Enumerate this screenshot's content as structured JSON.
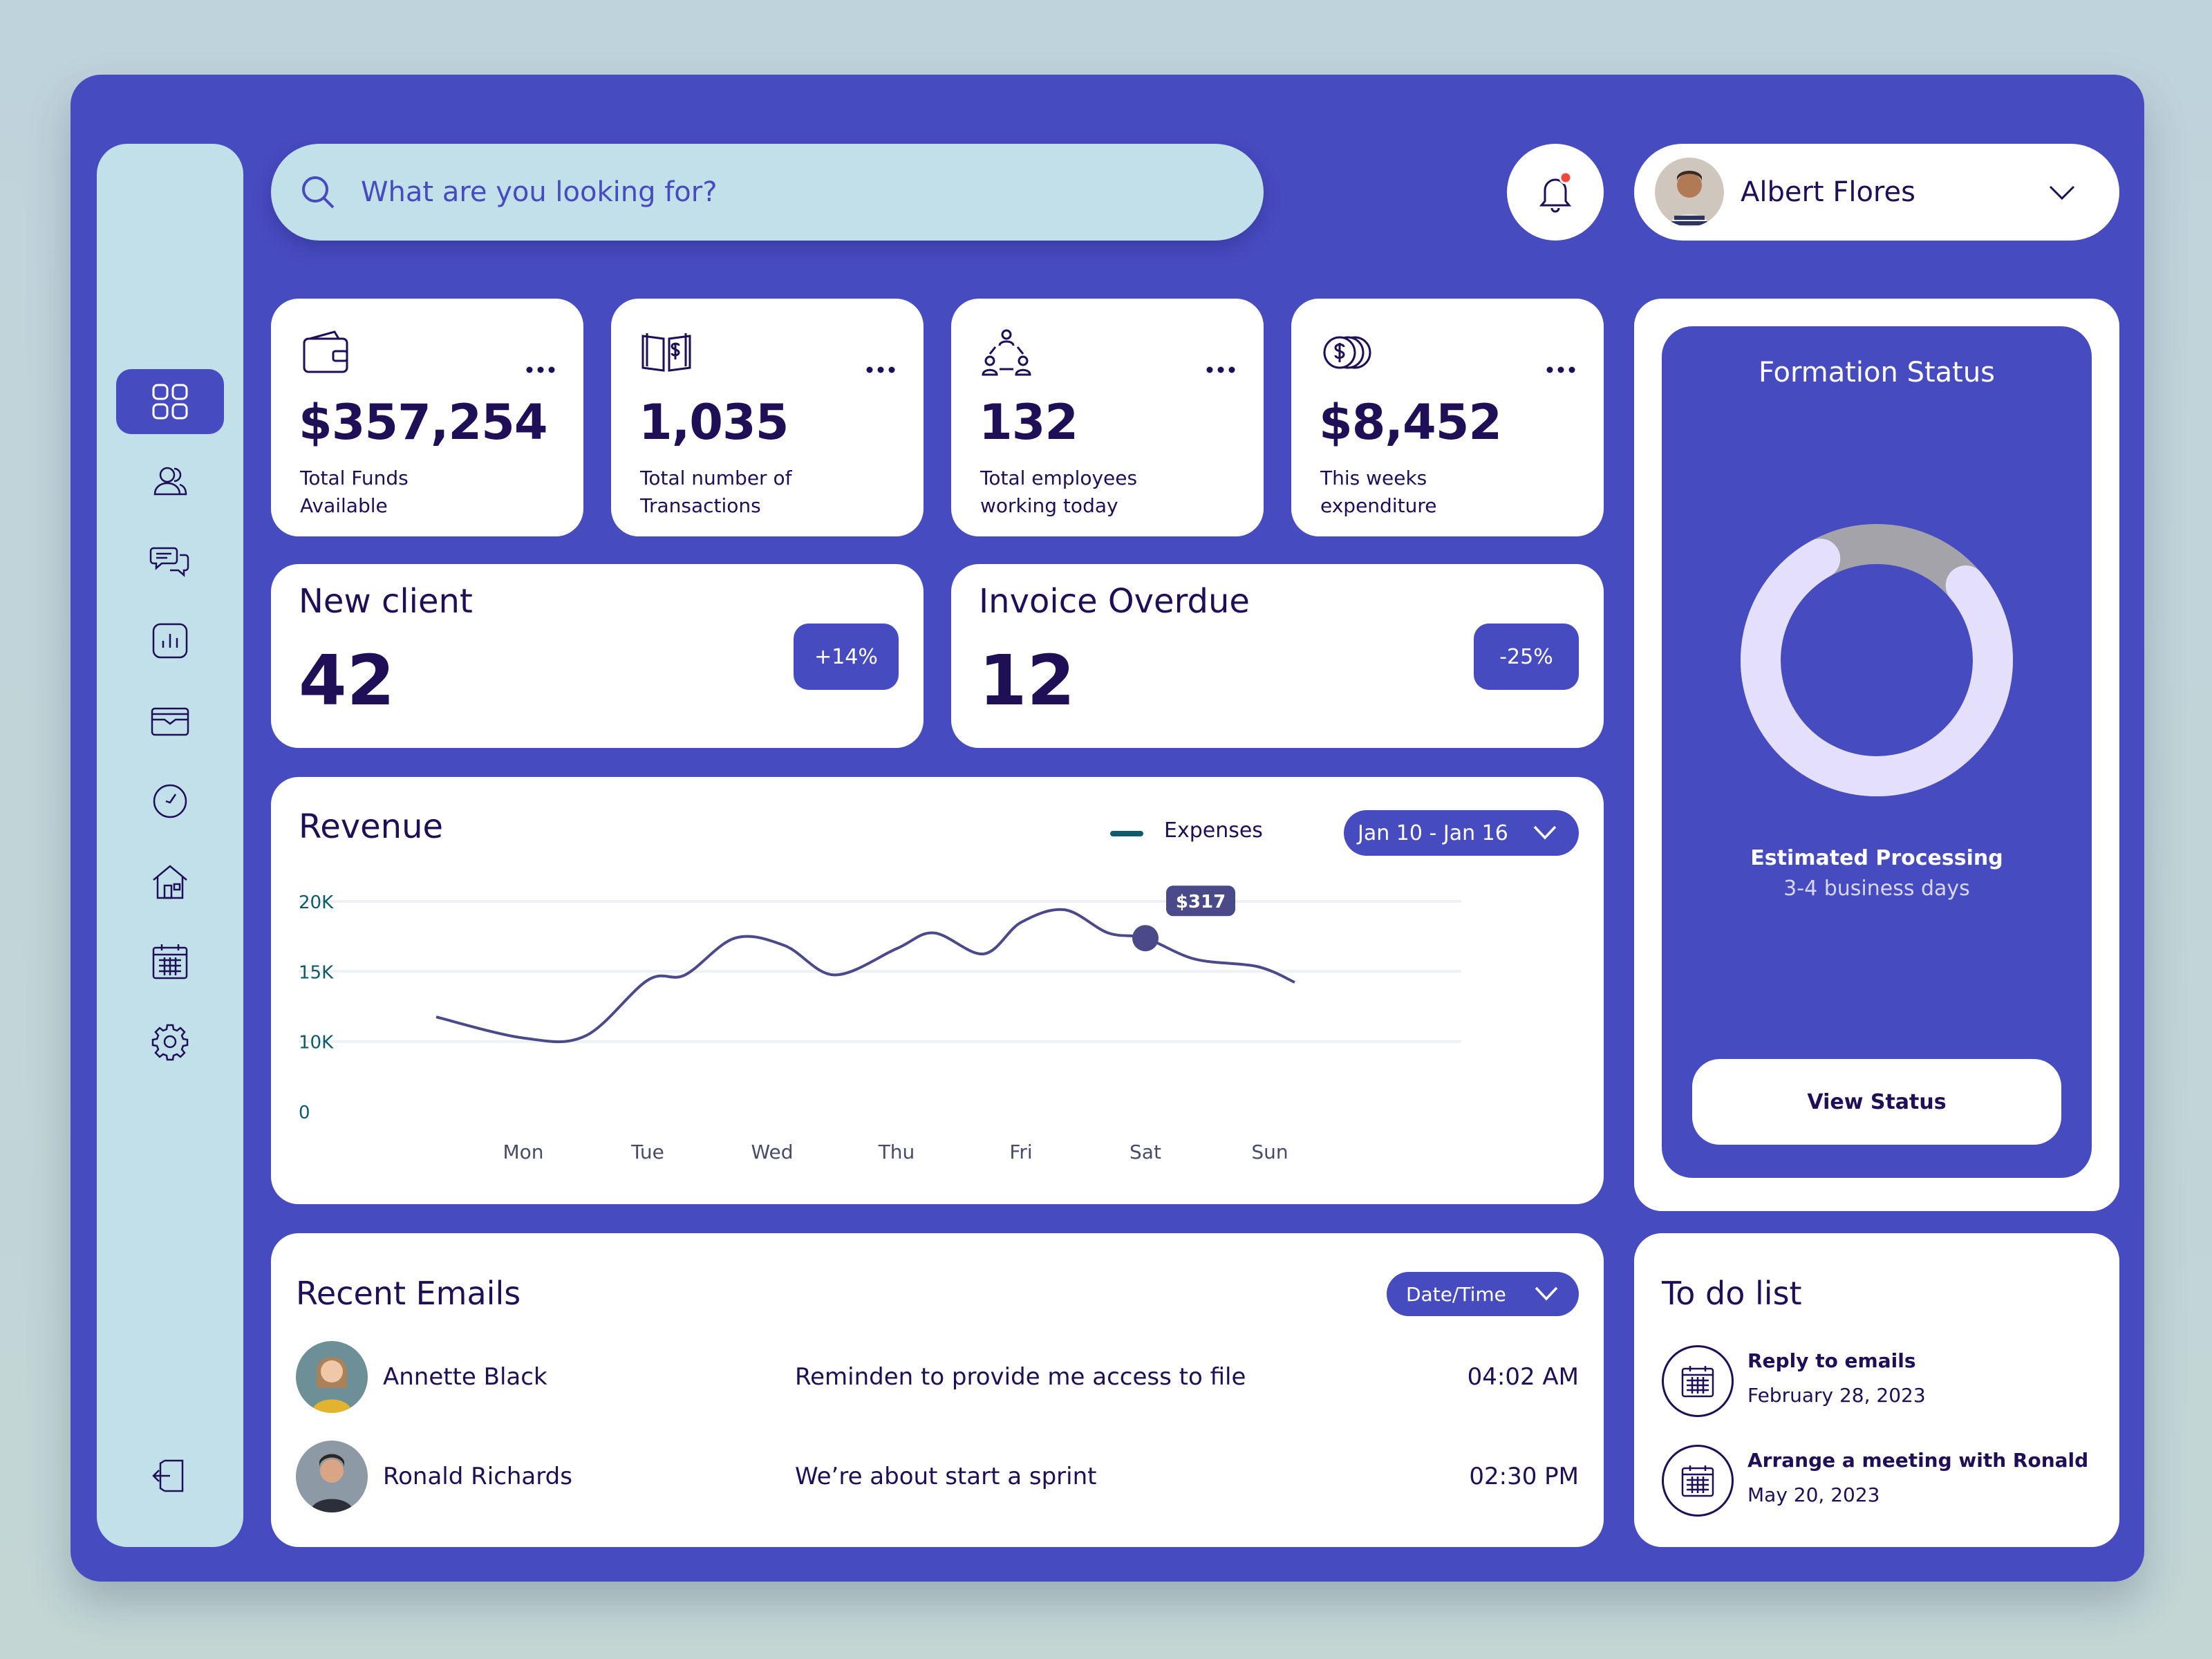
{
  "search": {
    "placeholder": "What are you looking for?"
  },
  "profile": {
    "name": "Albert Flores"
  },
  "stats": [
    {
      "icon": "wallet-icon",
      "value": "$357,254",
      "label": "Total Funds Available"
    },
    {
      "icon": "money-book-icon",
      "value": "1,035",
      "label": "Total number of Transactions"
    },
    {
      "icon": "team-icon",
      "value": "132",
      "label": "Total employees working today"
    },
    {
      "icon": "coins-icon",
      "value": "$8,452",
      "label": "This weeks expenditure"
    }
  ],
  "metrics": [
    {
      "title": "New client",
      "value": "42",
      "badge": "+14%"
    },
    {
      "title": "Invoice Overdue",
      "value": "12",
      "badge": "-25%"
    }
  ],
  "revenue": {
    "title": "Revenue",
    "legend": "Expenses",
    "range": "Jan 10 - Jan 16",
    "tooltip": "$317"
  },
  "chart_data": {
    "type": "line",
    "title": "Revenue",
    "yticks": [
      "20K",
      "15K",
      "10K",
      "0"
    ],
    "ylim": [
      0,
      20000
    ],
    "categories": [
      "Mon",
      "Tue",
      "Wed",
      "Thu",
      "Fri",
      "Sat",
      "Sun"
    ],
    "series": [
      {
        "name": "Expenses",
        "x": [
          -0.7,
          0.0,
          0.5,
          1.0,
          1.3,
          1.7,
          2.1,
          2.5,
          3.0,
          3.3,
          3.7,
          4.0,
          4.35,
          4.7,
          5.0,
          5.4,
          5.9,
          6.2
        ],
        "y": [
          9000,
          7000,
          7200,
          12500,
          13000,
          16500,
          15800,
          13000,
          15500,
          17000,
          15000,
          18000,
          19200,
          17000,
          16500,
          14500,
          13800,
          12300
        ]
      }
    ],
    "highlight": {
      "x": 5.0,
      "y": 16500,
      "label": "$317"
    },
    "grid": true
  },
  "formation": {
    "title": "Formation Status",
    "sub1": "Estimated Processing",
    "sub2": "3-4 business days",
    "button": "View Status",
    "progress": 0.78,
    "colors": {
      "done": "#e4e0fb",
      "remaining": "#a3a3a9"
    }
  },
  "emails": {
    "title": "Recent Emails",
    "sort": "Date/Time",
    "rows": [
      {
        "name": "Annette Black",
        "subject": "Reminden to provide me access to file",
        "time": "04:02 AM"
      },
      {
        "name": "Ronald Richards",
        "subject": "We’re about start a sprint",
        "time": "02:30 PM"
      }
    ]
  },
  "todo": {
    "title": "To do list",
    "items": [
      {
        "task": "Reply to emails",
        "date": "February 28, 2023"
      },
      {
        "task": "Arrange a meeting with Ronald",
        "date": "May 20, 2023"
      }
    ]
  },
  "colors": {
    "accent": "#474bc0",
    "ink": "#1e0f57",
    "sidebar": "#c2e0ea",
    "line": "#4a4a8a"
  }
}
